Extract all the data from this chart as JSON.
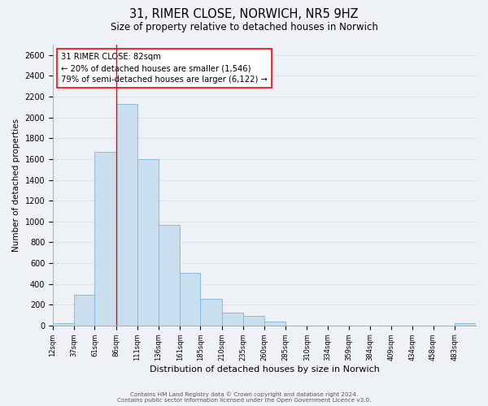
{
  "title": "31, RIMER CLOSE, NORWICH, NR5 9HZ",
  "subtitle": "Size of property relative to detached houses in Norwich",
  "xlabel": "Distribution of detached houses by size in Norwich",
  "ylabel": "Number of detached properties",
  "bar_color": "#c9dff0",
  "bar_edge_color": "#7ab8d9",
  "grid_color": "#d8e4ee",
  "property_line_x": 86,
  "property_line_color": "red",
  "annotation_line1": "31 RIMER CLOSE: 82sqm",
  "annotation_line2": "← 20% of detached houses are smaller (1,546)",
  "annotation_line3": "79% of semi-detached houses are larger (6,122) →",
  "annotation_box_color": "white",
  "annotation_box_edge": "red",
  "bin_edges": [
    12,
    37,
    61,
    86,
    111,
    136,
    161,
    185,
    210,
    235,
    260,
    285,
    310,
    334,
    359,
    384,
    409,
    434,
    458,
    483,
    508
  ],
  "bar_heights": [
    20,
    295,
    1670,
    2130,
    1600,
    965,
    505,
    255,
    125,
    95,
    35,
    0,
    0,
    0,
    0,
    0,
    0,
    0,
    0,
    20
  ],
  "ylim": [
    0,
    2700
  ],
  "yticks": [
    0,
    200,
    400,
    600,
    800,
    1000,
    1200,
    1400,
    1600,
    1800,
    2000,
    2200,
    2400,
    2600
  ],
  "footer_line1": "Contains HM Land Registry data © Crown copyright and database right 2024.",
  "footer_line2": "Contains public sector information licensed under the Open Government Licence v3.0.",
  "background_color": "#eef2f7"
}
